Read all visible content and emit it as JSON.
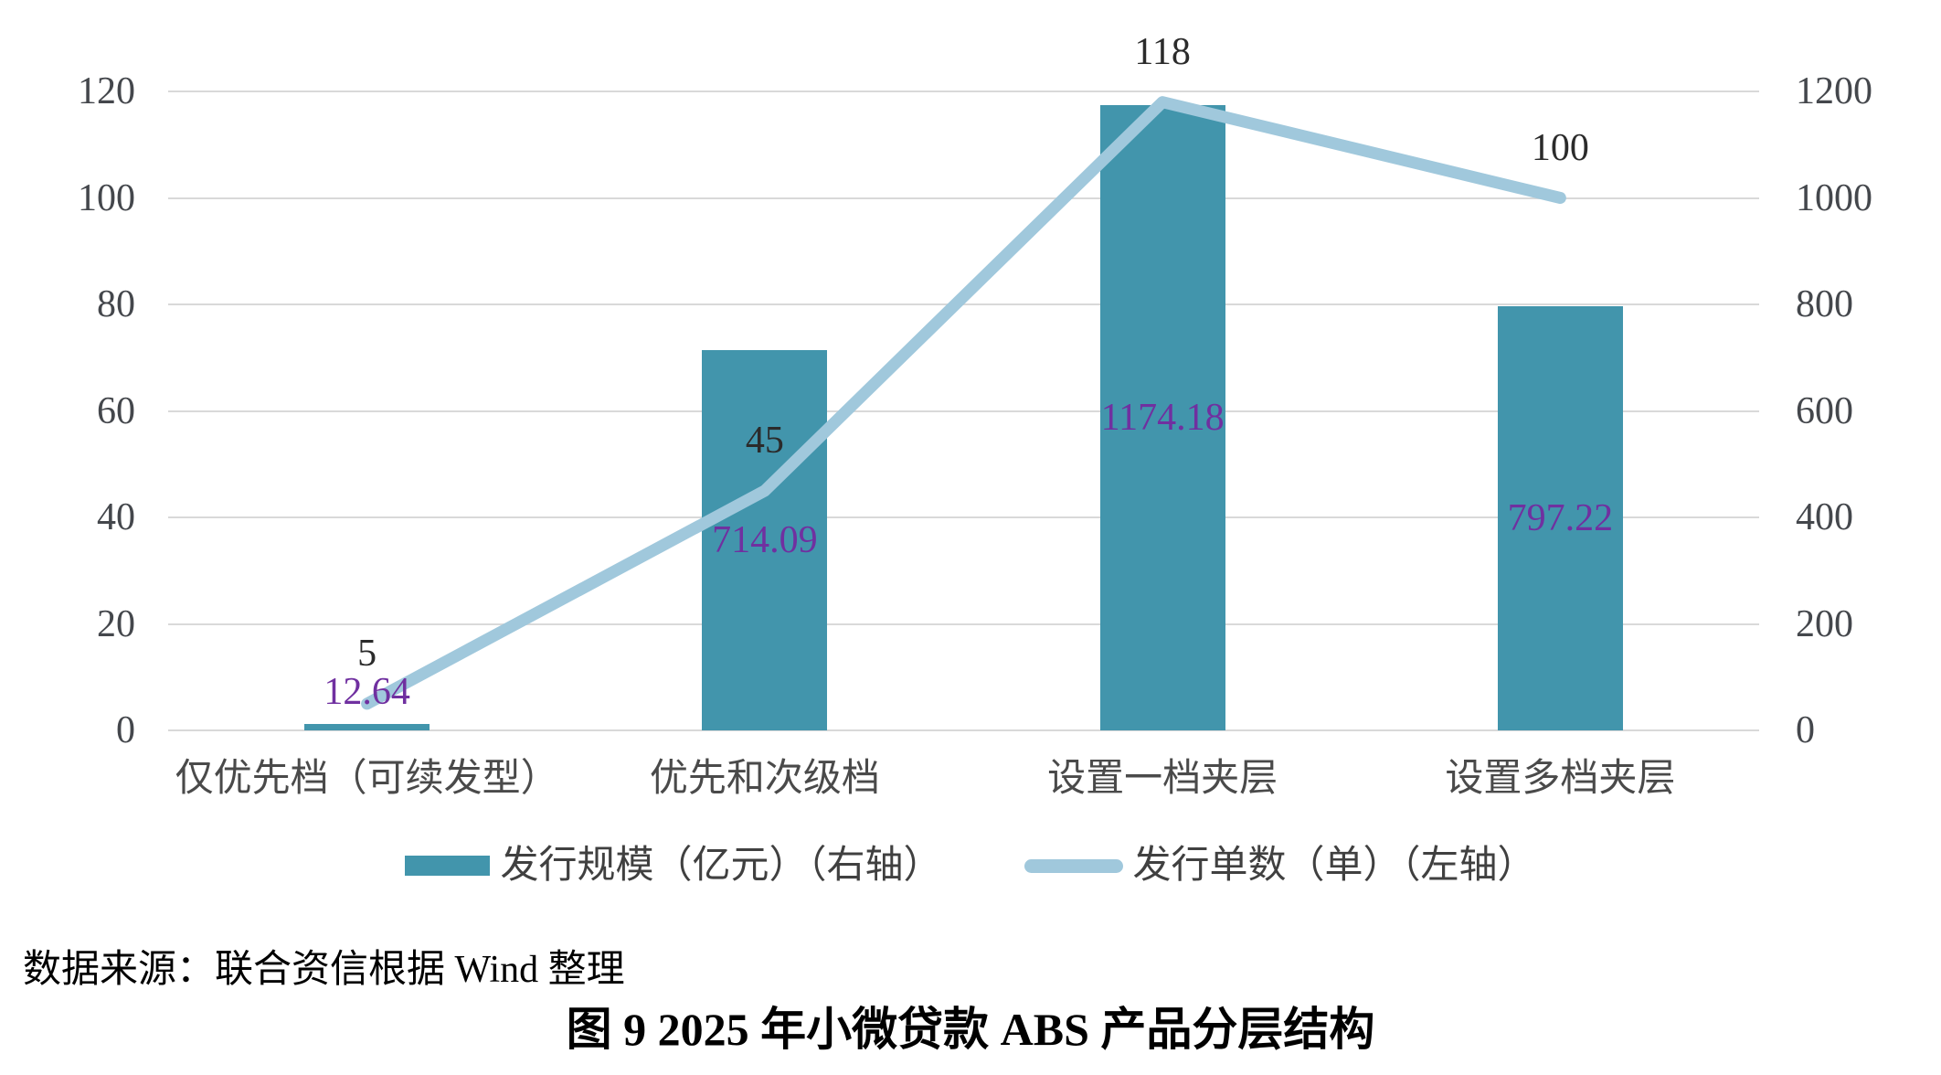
{
  "chart_data": {
    "type": "combo_bar_line",
    "title": "图 9  2025 年小微贷款 ABS 产品分层结构",
    "source_note": "数据来源：联合资信根据 Wind 整理",
    "categories": [
      "仅优先档（可续发型）",
      "优先和次级档",
      "设置一档夹层",
      "设置多档夹层"
    ],
    "series": [
      {
        "name": "发行规模（亿元）（右轴）",
        "type": "bar",
        "axis": "right",
        "values": [
          12.64,
          714.09,
          1174.18,
          797.22
        ],
        "labels": [
          "12.64",
          "714.09",
          "1174.18",
          "797.22"
        ],
        "color": "#4295AC",
        "label_color": "#7030A0"
      },
      {
        "name": "发行单数（单）（左轴）",
        "type": "line",
        "axis": "left",
        "values": [
          5,
          45,
          118,
          100
        ],
        "labels": [
          "5",
          "45",
          "118",
          "100"
        ],
        "color": "#A0C8DC",
        "label_color": "#2B2B2B"
      }
    ],
    "left_axis": {
      "min": 0,
      "max": 120,
      "step": 20,
      "ticks": [
        "0",
        "20",
        "40",
        "60",
        "80",
        "100",
        "120"
      ]
    },
    "right_axis": {
      "min": 0,
      "max": 1200,
      "step": 200,
      "ticks": [
        "0",
        "200",
        "400",
        "600",
        "800",
        "1000",
        "1200"
      ]
    },
    "grid": true,
    "legend_position": "bottom"
  },
  "styles": {
    "background": "#FFFFFF",
    "grid_color": "#D9D9D9",
    "axis_label_color": "#44474C",
    "bar_color": "#4295AC",
    "line_color": "#A0C8DC",
    "bar_value_color": "#7030A0",
    "line_value_color": "#2B2B2B"
  }
}
